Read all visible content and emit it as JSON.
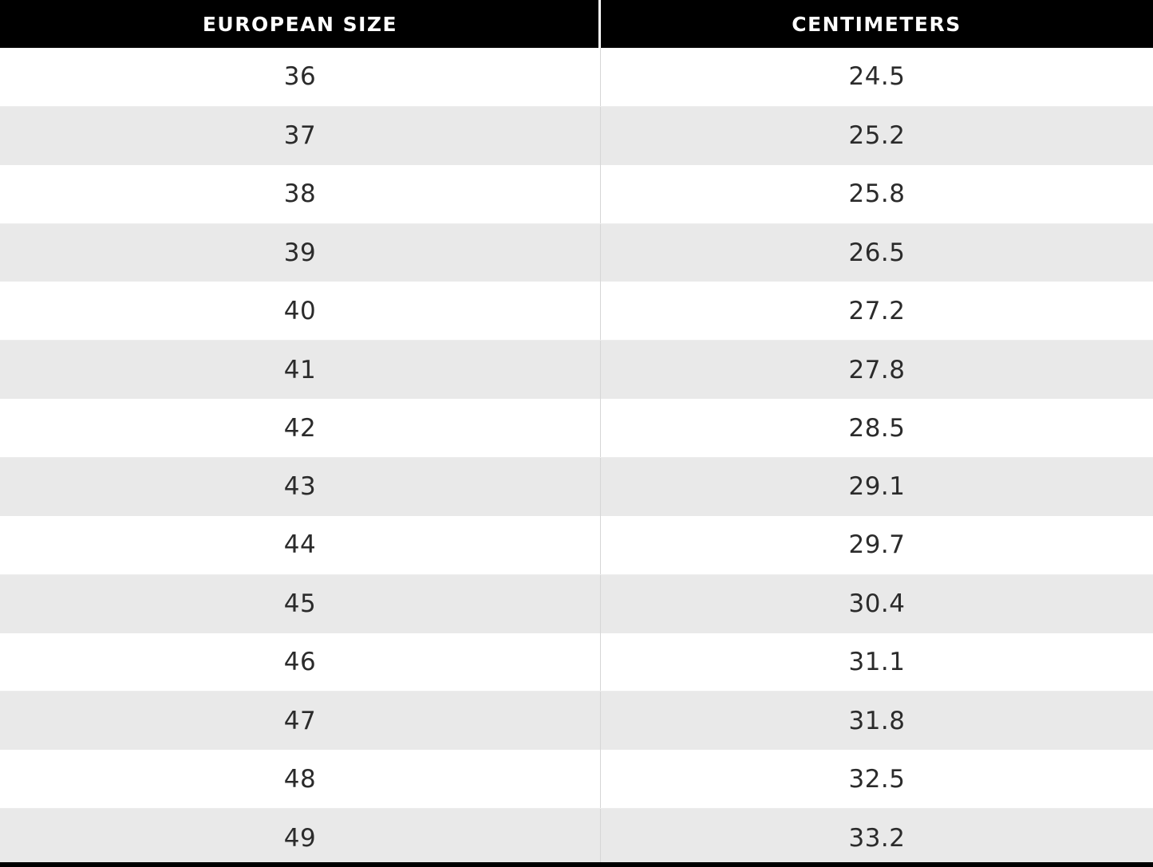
{
  "table": {
    "headers": {
      "size_label": "EUROPEAN SIZE",
      "cm_label": "CENTIMETERS"
    },
    "rows": [
      {
        "size": "36",
        "cm": "24.5"
      },
      {
        "size": "37",
        "cm": "25.2"
      },
      {
        "size": "38",
        "cm": "25.8"
      },
      {
        "size": "39",
        "cm": "26.5"
      },
      {
        "size": "40",
        "cm": "27.2"
      },
      {
        "size": "41",
        "cm": "27.8"
      },
      {
        "size": "42",
        "cm": "28.5"
      },
      {
        "size": "43",
        "cm": "29.1"
      },
      {
        "size": "44",
        "cm": "29.7"
      },
      {
        "size": "45",
        "cm": "30.4"
      },
      {
        "size": "46",
        "cm": "31.1"
      },
      {
        "size": "47",
        "cm": "31.8"
      },
      {
        "size": "48",
        "cm": "32.5"
      },
      {
        "size": "49",
        "cm": "33.2"
      }
    ],
    "colors": {
      "header_bg": "#000000",
      "header_text": "#ffffff",
      "row_alt_bg": "#e9e9e9",
      "row_bg": "#ffffff",
      "body_text": "#2b2b2b",
      "column_divider": "#d6d6d6"
    }
  }
}
